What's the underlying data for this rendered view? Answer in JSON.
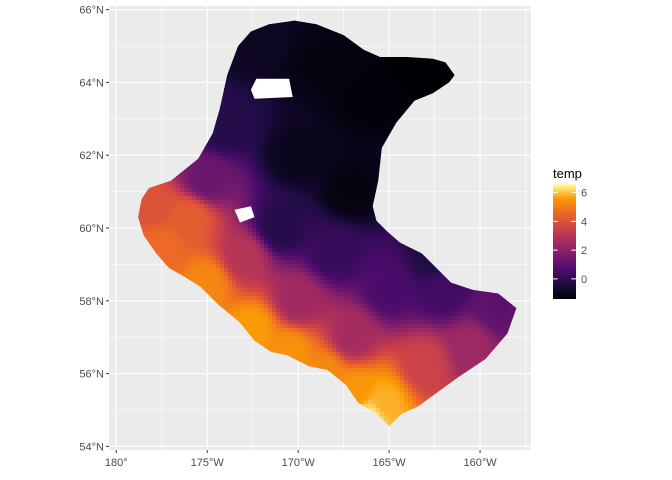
{
  "chart_data": {
    "type": "heatmap",
    "subtype": "raster-map",
    "title": "",
    "xlabel": "",
    "ylabel": "",
    "x_ticks": [
      {
        "value": -180,
        "label": "180°"
      },
      {
        "value": -175,
        "label": "175°W"
      },
      {
        "value": -170,
        "label": "170°W"
      },
      {
        "value": -165,
        "label": "165°W"
      },
      {
        "value": -160,
        "label": "160°W"
      }
    ],
    "y_ticks": [
      {
        "value": 54,
        "label": "54°N"
      },
      {
        "value": 56,
        "label": "56°N"
      },
      {
        "value": 58,
        "label": "58°N"
      },
      {
        "value": 60,
        "label": "60°N"
      },
      {
        "value": 62,
        "label": "62°N"
      },
      {
        "value": 64,
        "label": "64°N"
      },
      {
        "value": 66,
        "label": "66°N"
      }
    ],
    "xlim": [
      -180.4,
      -157.2
    ],
    "ylim": [
      53.9,
      66.1
    ],
    "grid": true,
    "background_color": "#ebebeb",
    "grid_color": "#ffffff",
    "legend": {
      "title": "temp",
      "placement": "right",
      "ticks": [
        0,
        2,
        4,
        6
      ],
      "tick_labels": [
        "0",
        "2",
        "4",
        "6"
      ],
      "range": [
        -1.4,
        6.6
      ],
      "palette": "inferno"
    },
    "region_outline": [
      [
        -172.6,
        65.4
      ],
      [
        -171.6,
        65.6
      ],
      [
        -170.2,
        65.7
      ],
      [
        -169.0,
        65.6
      ],
      [
        -167.5,
        65.3
      ],
      [
        -166.4,
        64.9
      ],
      [
        -165.5,
        64.7
      ],
      [
        -164.0,
        64.7
      ],
      [
        -162.6,
        64.65
      ],
      [
        -161.9,
        64.55
      ],
      [
        -161.4,
        64.2
      ],
      [
        -161.7,
        64.0
      ],
      [
        -162.6,
        63.7
      ],
      [
        -163.6,
        63.5
      ],
      [
        -164.6,
        62.9
      ],
      [
        -165.4,
        62.2
      ],
      [
        -165.6,
        61.3
      ],
      [
        -165.9,
        60.6
      ],
      [
        -165.7,
        60.2
      ],
      [
        -165.1,
        59.9
      ],
      [
        -164.4,
        59.6
      ],
      [
        -163.2,
        59.3
      ],
      [
        -162.4,
        58.9
      ],
      [
        -161.6,
        58.5
      ],
      [
        -160.4,
        58.3
      ],
      [
        -159.0,
        58.2
      ],
      [
        -158.0,
        57.8
      ],
      [
        -158.5,
        57.1
      ],
      [
        -159.7,
        56.4
      ],
      [
        -161.2,
        55.9
      ],
      [
        -162.3,
        55.5
      ],
      [
        -163.4,
        55.1
      ],
      [
        -164.3,
        54.9
      ],
      [
        -164.7,
        54.7
      ],
      [
        -165.0,
        54.55
      ],
      [
        -165.7,
        54.9
      ],
      [
        -166.7,
        55.2
      ],
      [
        -167.4,
        55.7
      ],
      [
        -168.4,
        56.1
      ],
      [
        -169.4,
        56.2
      ],
      [
        -170.6,
        56.5
      ],
      [
        -171.5,
        56.6
      ],
      [
        -172.4,
        56.9
      ],
      [
        -173.2,
        57.4
      ],
      [
        -174.4,
        57.9
      ],
      [
        -175.4,
        58.4
      ],
      [
        -176.4,
        58.7
      ],
      [
        -177.1,
        58.9
      ],
      [
        -177.8,
        59.3
      ],
      [
        -178.5,
        59.8
      ],
      [
        -178.8,
        60.3
      ],
      [
        -178.6,
        60.8
      ],
      [
        -178.2,
        61.1
      ],
      [
        -177.0,
        61.3
      ],
      [
        -175.5,
        61.9
      ],
      [
        -174.7,
        62.6
      ],
      [
        -174.3,
        63.3
      ],
      [
        -173.9,
        64.2
      ],
      [
        -173.3,
        65.0
      ]
    ],
    "holes": [
      [
        [
          -172.3,
          64.1
        ],
        [
          -170.5,
          64.1
        ],
        [
          -170.3,
          63.6
        ],
        [
          -172.4,
          63.55
        ],
        [
          -172.6,
          63.8
        ]
      ],
      [
        [
          -173.5,
          60.5
        ],
        [
          -172.6,
          60.6
        ],
        [
          -172.4,
          60.3
        ],
        [
          -173.2,
          60.15
        ]
      ]
    ],
    "temperature_field": [
      {
        "lon": -166.0,
        "lat": 54.8,
        "temp": 6.3
      },
      {
        "lon": -165.2,
        "lat": 55.2,
        "temp": 5.8
      },
      {
        "lon": -166.8,
        "lat": 55.5,
        "temp": 5.5
      },
      {
        "lon": -168.5,
        "lat": 56.0,
        "temp": 5.2
      },
      {
        "lon": -170.5,
        "lat": 56.6,
        "temp": 5.4
      },
      {
        "lon": -172.5,
        "lat": 57.2,
        "temp": 5.6
      },
      {
        "lon": -175.0,
        "lat": 58.5,
        "temp": 5.2
      },
      {
        "lon": -177.5,
        "lat": 59.5,
        "temp": 4.6
      },
      {
        "lon": -178.0,
        "lat": 60.6,
        "temp": 4.0
      },
      {
        "lon": -176.0,
        "lat": 60.3,
        "temp": 4.3
      },
      {
        "lon": -173.0,
        "lat": 59.2,
        "temp": 3.0
      },
      {
        "lon": -170.0,
        "lat": 58.0,
        "temp": 2.5
      },
      {
        "lon": -167.0,
        "lat": 57.0,
        "temp": 2.6
      },
      {
        "lon": -163.0,
        "lat": 56.2,
        "temp": 3.5
      },
      {
        "lon": -160.5,
        "lat": 56.7,
        "temp": 2.4
      },
      {
        "lon": -159.0,
        "lat": 57.8,
        "temp": 1.0
      },
      {
        "lon": -162.0,
        "lat": 58.3,
        "temp": 0.4
      },
      {
        "lon": -165.0,
        "lat": 58.3,
        "temp": 0.6
      },
      {
        "lon": -168.0,
        "lat": 59.3,
        "temp": 0.2
      },
      {
        "lon": -171.0,
        "lat": 60.0,
        "temp": -0.2
      },
      {
        "lon": -175.0,
        "lat": 61.3,
        "temp": 1.3
      },
      {
        "lon": -174.0,
        "lat": 62.8,
        "temp": -0.2
      },
      {
        "lon": -170.0,
        "lat": 62.0,
        "temp": -1.0
      },
      {
        "lon": -167.0,
        "lat": 61.0,
        "temp": -1.2
      },
      {
        "lon": -166.0,
        "lat": 63.5,
        "temp": -1.3
      },
      {
        "lon": -169.0,
        "lat": 64.5,
        "temp": -1.2
      },
      {
        "lon": -172.0,
        "lat": 65.0,
        "temp": -0.9
      },
      {
        "lon": -163.0,
        "lat": 64.3,
        "temp": -1.4
      },
      {
        "lon": -162.5,
        "lat": 59.2,
        "temp": -0.3
      }
    ]
  }
}
